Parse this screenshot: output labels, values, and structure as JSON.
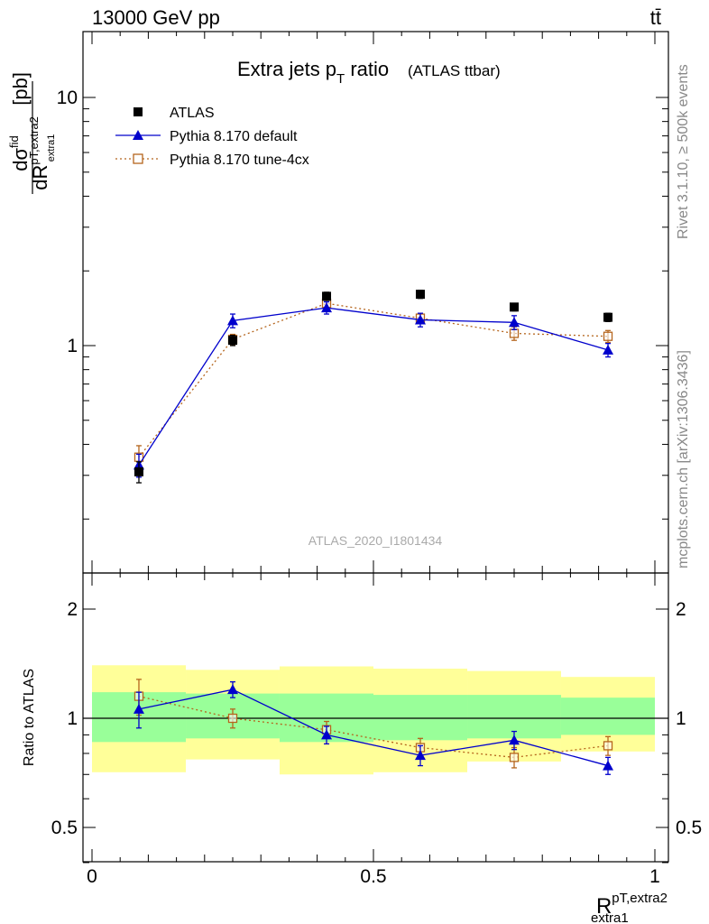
{
  "header": {
    "energy_label": "13000 GeV pp",
    "process_label": "tt̄"
  },
  "side": {
    "rivet_label": "Rivet 3.1.10, ≥ 500k events",
    "source_label": "mcplots.cern.ch [arXiv:1306.3436]"
  },
  "watermark": "ATLAS_2020_I1801434",
  "chart_data": [
    {
      "type": "scatter",
      "title": "Extra jets p",
      "title_sub": "T",
      "title_suffix": " ratio",
      "title_extra": "(ATLAS ttbar)",
      "ylabel": "dσ^fid / dR^{pT,extra2}_{extra1} [pb]",
      "ylabel_unit": "[pb]",
      "yscale": "log",
      "xlim": [
        0,
        1
      ],
      "ylim": [
        0.2,
        18
      ],
      "y_tick_labels": [
        "1",
        "10"
      ],
      "legend_position": "top-left",
      "x": [
        0.0833,
        0.25,
        0.4167,
        0.5833,
        0.75,
        0.9167
      ],
      "series": [
        {
          "name": "ATLAS",
          "color": "#000000",
          "marker": "square",
          "values": [
            0.31,
            1.05,
            1.58,
            1.61,
            1.43,
            1.3
          ],
          "errors": [
            0.03,
            0.05,
            0.06,
            0.06,
            0.05,
            0.05
          ]
        },
        {
          "name": "Pythia 8.170 default",
          "color": "#0000cc",
          "marker": "triangle",
          "line": "solid",
          "values": [
            0.33,
            1.26,
            1.42,
            1.27,
            1.24,
            0.96
          ],
          "errors": [
            0.035,
            0.08,
            0.08,
            0.08,
            0.08,
            0.06
          ]
        },
        {
          "name": "Pythia 8.170 tune-4cx",
          "color": "#b5651d",
          "marker": "open-square",
          "line": "dotted",
          "values": [
            0.355,
            1.06,
            1.48,
            1.29,
            1.12,
            1.09
          ],
          "errors": [
            0.04,
            0.05,
            0.06,
            0.06,
            0.07,
            0.06
          ]
        }
      ]
    },
    {
      "type": "scatter",
      "ylabel": "Ratio to ATLAS",
      "xlabel": "R",
      "xlabel_sup": "pT,extra2",
      "xlabel_sub": "extra1",
      "yscale": "log",
      "xlim": [
        0,
        1
      ],
      "ylim": [
        0.4,
        2.5
      ],
      "x_tick_labels": [
        "0",
        "0.5",
        "1"
      ],
      "y_tick_labels": [
        "0.5",
        "1",
        "2"
      ],
      "bands": {
        "edges": [
          0,
          0.1667,
          0.3333,
          0.5,
          0.6667,
          0.8333,
          1.0
        ],
        "yellow_low": [
          0.71,
          0.77,
          0.7,
          0.71,
          0.76,
          0.81
        ],
        "yellow_high": [
          1.4,
          1.36,
          1.39,
          1.37,
          1.35,
          1.3
        ],
        "green_low": [
          0.86,
          0.88,
          0.86,
          0.87,
          0.88,
          0.9
        ],
        "green_high": [
          1.18,
          1.17,
          1.17,
          1.16,
          1.16,
          1.14
        ],
        "yellow_color": "#ffff99",
        "green_color": "#99ff99"
      },
      "x": [
        0.0833,
        0.25,
        0.4167,
        0.5833,
        0.75,
        0.9167
      ],
      "series": [
        {
          "name": "Pythia 8.170 default",
          "color": "#0000cc",
          "marker": "triangle",
          "line": "solid",
          "values": [
            1.06,
            1.2,
            0.9,
            0.79,
            0.87,
            0.74
          ],
          "errors": [
            0.12,
            0.06,
            0.05,
            0.05,
            0.05,
            0.04
          ]
        },
        {
          "name": "Pythia 8.170 tune-4cx",
          "color": "#b5651d",
          "marker": "open-square",
          "line": "dotted",
          "values": [
            1.15,
            1.0,
            0.93,
            0.83,
            0.78,
            0.84
          ],
          "errors": [
            0.13,
            0.06,
            0.05,
            0.05,
            0.05,
            0.05
          ]
        }
      ]
    }
  ]
}
